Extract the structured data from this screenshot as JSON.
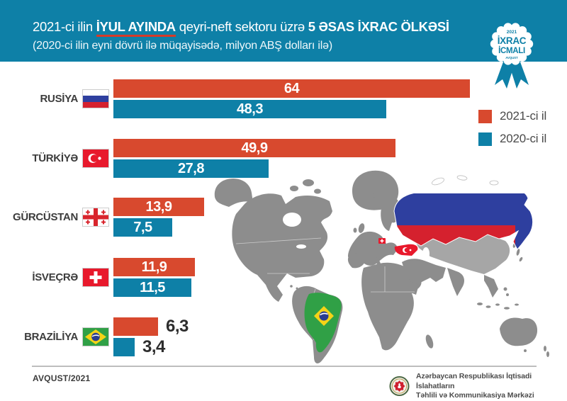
{
  "header": {
    "title": {
      "prefix": "2021-ci ilin ",
      "highlight": "İYUL AYINDA",
      "middle": " qeyri-neft sektoru üzrə ",
      "emphasis": "5 ƏSAS İXRAC ÖLKƏSİ"
    },
    "subtitle": "(2020-ci ilin eyni dövrü ilə müqayisədə, milyon ABŞ dolları ilə)",
    "badge": {
      "year": "2021",
      "title_line1": "İXRAC",
      "title_line2": "İCMALI",
      "month": "AVQUST"
    }
  },
  "legend": {
    "items": [
      {
        "label": "2021-ci il",
        "color": "#d8492e"
      },
      {
        "label": "2020-ci il",
        "color": "#0e80a7"
      }
    ]
  },
  "rows": [
    {
      "label": "RUSİYA",
      "flag": "russia",
      "v2021_label": "64",
      "v2020_label": "48,3",
      "values_outside": false
    },
    {
      "label": "TÜRKİYƏ",
      "flag": "turkey",
      "v2021_label": "49,9",
      "v2020_label": "27,8",
      "values_outside": false
    },
    {
      "label": "GÜRCÜSTAN",
      "flag": "georgia",
      "v2021_label": "13,9",
      "v2020_label": "7,5",
      "values_outside": false
    },
    {
      "label": "İSVEÇRƏ",
      "flag": "switzerland",
      "v2021_label": "11,9",
      "v2020_label": "11,5",
      "values_outside": false
    },
    {
      "label": "BRAZİLİYA",
      "flag": "brazil",
      "v2021_label": "6,3",
      "v2020_label": "3,4",
      "values_outside": true
    }
  ],
  "footer": {
    "period": "AVQUST/2021",
    "organization_line1": "Azərbaycan Respublikası İqtisadi İslahatların",
    "organization_line2": "Təhlili və Kommunikasiya Mərkəzi"
  },
  "chart_data": {
    "type": "bar",
    "orientation": "horizontal",
    "title": "2021-ci ilin İYUL AYINDA qeyri-neft sektoru üzrə 5 ƏSAS İXRAC ÖLKƏSİ",
    "subtitle": "(2020-ci ilin eyni dövrü ilə müqayisədə, milyon ABŞ dolları ilə)",
    "unit": "milyon ABŞ dolları",
    "categories": [
      "Rusiya",
      "Türkiyə",
      "Gürcüstan",
      "İsveçrə",
      "Braziliya"
    ],
    "series": [
      {
        "name": "2021-ci il",
        "color": "#d8492e",
        "values": [
          64,
          49.9,
          13.9,
          11.9,
          6.3
        ]
      },
      {
        "name": "2020-ci il",
        "color": "#0e80a7",
        "values": [
          48.3,
          27.8,
          7.5,
          11.5,
          3.4
        ]
      }
    ],
    "xlim": [
      0,
      64
    ],
    "value_labels": true,
    "legend_position": "right",
    "grid": false
  }
}
